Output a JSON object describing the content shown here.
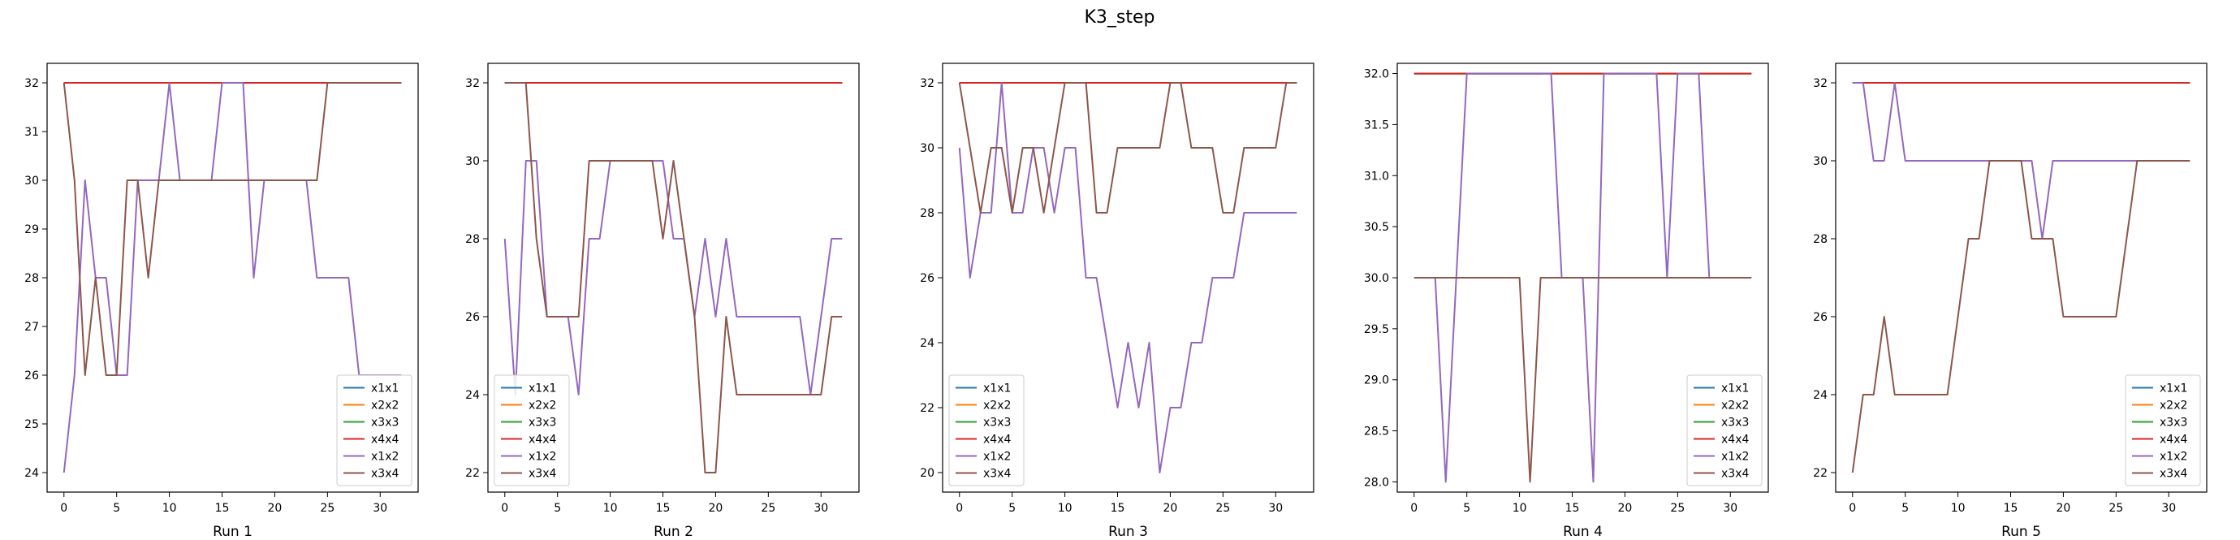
{
  "figure": {
    "title": "K3_step"
  },
  "series_colors": {
    "x1x1": "#1f77b4",
    "x2x2": "#ff7f0e",
    "x3x3": "#2ca02c",
    "x4x4": "#d62728",
    "x1x2": "#9467bd",
    "x3x4": "#8c564b"
  },
  "chart_data": [
    {
      "type": "line",
      "xlabel": "Run 1",
      "ylabel": "",
      "xlim": [
        -1.6,
        33.6
      ],
      "ylim": [
        23.6,
        32.4
      ],
      "xticks": [
        0,
        5,
        10,
        15,
        20,
        25,
        30
      ],
      "yticks": [
        24,
        25,
        26,
        27,
        28,
        29,
        30,
        31,
        32
      ],
      "legend": "lower-right",
      "series": [
        {
          "name": "x1x1",
          "x": [
            0,
            32
          ],
          "y": [
            32,
            32
          ]
        },
        {
          "name": "x2x2",
          "x": [
            0,
            32
          ],
          "y": [
            32,
            32
          ]
        },
        {
          "name": "x3x3",
          "x": [
            0,
            32
          ],
          "y": [
            32,
            32
          ]
        },
        {
          "name": "x4x4",
          "x": [
            0,
            32
          ],
          "y": [
            32,
            32
          ]
        },
        {
          "name": "x1x2",
          "x": [
            0,
            1,
            2,
            3,
            4,
            5,
            6,
            7,
            8,
            9,
            10,
            11,
            12,
            13,
            14,
            15,
            16,
            17,
            18,
            19,
            20,
            21,
            22,
            23,
            24,
            25,
            26,
            27,
            28,
            29,
            30,
            31,
            32
          ],
          "y": [
            24,
            26,
            30,
            28,
            28,
            26,
            26,
            30,
            30,
            30,
            32,
            30,
            30,
            30,
            30,
            32,
            32,
            32,
            28,
            30,
            30,
            30,
            30,
            30,
            28,
            28,
            28,
            28,
            26,
            26,
            26,
            26,
            26
          ]
        },
        {
          "name": "x3x4",
          "x": [
            0,
            1,
            2,
            3,
            4,
            5,
            6,
            7,
            8,
            9,
            10,
            11,
            12,
            13,
            14,
            15,
            16,
            17,
            18,
            19,
            20,
            21,
            22,
            23,
            24,
            25,
            26,
            27,
            28,
            29,
            30,
            31,
            32
          ],
          "y": [
            32,
            30,
            26,
            28,
            26,
            26,
            30,
            30,
            28,
            30,
            30,
            30,
            30,
            30,
            30,
            30,
            30,
            30,
            30,
            30,
            30,
            30,
            30,
            30,
            30,
            32,
            32,
            32,
            32,
            32,
            32,
            32,
            32
          ]
        }
      ]
    },
    {
      "type": "line",
      "xlabel": "Run 2",
      "ylabel": "",
      "xlim": [
        -1.6,
        33.6
      ],
      "ylim": [
        21.5,
        32.5
      ],
      "xticks": [
        0,
        5,
        10,
        15,
        20,
        25,
        30
      ],
      "yticks": [
        22,
        24,
        26,
        28,
        30,
        32
      ],
      "legend": "lower-left",
      "series": [
        {
          "name": "x1x1",
          "x": [
            0,
            32
          ],
          "y": [
            32,
            32
          ]
        },
        {
          "name": "x2x2",
          "x": [
            0,
            32
          ],
          "y": [
            32,
            32
          ]
        },
        {
          "name": "x3x3",
          "x": [
            0,
            32
          ],
          "y": [
            32,
            32
          ]
        },
        {
          "name": "x4x4",
          "x": [
            0,
            32
          ],
          "y": [
            32,
            32
          ]
        },
        {
          "name": "x1x2",
          "x": [
            0,
            1,
            2,
            3,
            4,
            5,
            6,
            7,
            8,
            9,
            10,
            11,
            12,
            13,
            14,
            15,
            16,
            17,
            18,
            19,
            20,
            21,
            22,
            23,
            24,
            25,
            26,
            27,
            28,
            29,
            30,
            31,
            32
          ],
          "y": [
            28,
            24,
            30,
            30,
            26,
            26,
            26,
            24,
            28,
            28,
            30,
            30,
            30,
            30,
            30,
            30,
            28,
            28,
            26,
            28,
            26,
            28,
            26,
            26,
            26,
            26,
            26,
            26,
            26,
            24,
            26,
            28,
            28
          ]
        },
        {
          "name": "x3x4",
          "x": [
            0,
            1,
            2,
            3,
            4,
            5,
            6,
            7,
            8,
            9,
            10,
            11,
            12,
            13,
            14,
            15,
            16,
            17,
            18,
            19,
            20,
            21,
            22,
            23,
            24,
            25,
            26,
            27,
            28,
            29,
            30,
            31,
            32
          ],
          "y": [
            32,
            32,
            32,
            28,
            26,
            26,
            26,
            26,
            30,
            30,
            30,
            30,
            30,
            30,
            30,
            28,
            30,
            28,
            26,
            22,
            22,
            26,
            24,
            24,
            24,
            24,
            24,
            24,
            24,
            24,
            24,
            26,
            26
          ]
        }
      ]
    },
    {
      "type": "line",
      "xlabel": "Run 3",
      "ylabel": "",
      "xlim": [
        -1.6,
        33.6
      ],
      "ylim": [
        19.4,
        32.6
      ],
      "xticks": [
        0,
        5,
        10,
        15,
        20,
        25,
        30
      ],
      "yticks": [
        20,
        22,
        24,
        26,
        28,
        30,
        32
      ],
      "legend": "lower-left",
      "series": [
        {
          "name": "x1x1",
          "x": [
            0,
            32
          ],
          "y": [
            32,
            32
          ]
        },
        {
          "name": "x2x2",
          "x": [
            0,
            32
          ],
          "y": [
            32,
            32
          ]
        },
        {
          "name": "x3x3",
          "x": [
            0,
            32
          ],
          "y": [
            32,
            32
          ]
        },
        {
          "name": "x4x4",
          "x": [
            0,
            32
          ],
          "y": [
            32,
            32
          ]
        },
        {
          "name": "x1x2",
          "x": [
            0,
            1,
            2,
            3,
            4,
            5,
            6,
            7,
            8,
            9,
            10,
            11,
            12,
            13,
            14,
            15,
            16,
            17,
            18,
            19,
            20,
            21,
            22,
            23,
            24,
            25,
            26,
            27,
            28,
            29,
            30,
            31,
            32
          ],
          "y": [
            30,
            26,
            28,
            28,
            32,
            28,
            28,
            30,
            30,
            28,
            30,
            30,
            26,
            26,
            24,
            22,
            24,
            22,
            24,
            20,
            22,
            22,
            24,
            24,
            26,
            26,
            26,
            28,
            28,
            28,
            28,
            28,
            28
          ]
        },
        {
          "name": "x3x4",
          "x": [
            0,
            1,
            2,
            3,
            4,
            5,
            6,
            7,
            8,
            9,
            10,
            11,
            12,
            13,
            14,
            15,
            16,
            17,
            18,
            19,
            20,
            21,
            22,
            23,
            24,
            25,
            26,
            27,
            28,
            29,
            30,
            31,
            32
          ],
          "y": [
            32,
            30,
            28,
            30,
            30,
            28,
            30,
            30,
            28,
            30,
            32,
            32,
            32,
            28,
            28,
            30,
            30,
            30,
            30,
            30,
            32,
            32,
            30,
            30,
            30,
            28,
            28,
            30,
            30,
            30,
            30,
            32,
            32
          ]
        }
      ]
    },
    {
      "type": "line",
      "xlabel": "Run 4",
      "ylabel": "",
      "xlim": [
        -1.6,
        33.6
      ],
      "ylim": [
        27.9,
        32.1
      ],
      "xticks": [
        0,
        5,
        10,
        15,
        20,
        25,
        30
      ],
      "yticks": [
        28.0,
        28.5,
        29.0,
        29.5,
        30.0,
        30.5,
        31.0,
        31.5,
        32.0
      ],
      "legend": "lower-right",
      "series": [
        {
          "name": "x1x1",
          "x": [
            0,
            32
          ],
          "y": [
            32,
            32
          ]
        },
        {
          "name": "x2x2",
          "x": [
            0,
            32
          ],
          "y": [
            32,
            32
          ]
        },
        {
          "name": "x3x3",
          "x": [
            0,
            32
          ],
          "y": [
            32,
            32
          ]
        },
        {
          "name": "x4x4",
          "x": [
            0,
            32
          ],
          "y": [
            32,
            32
          ]
        },
        {
          "name": "x1x2",
          "x": [
            0,
            1,
            2,
            3,
            4,
            5,
            6,
            7,
            8,
            9,
            10,
            11,
            12,
            13,
            14,
            15,
            16,
            17,
            18,
            19,
            20,
            21,
            22,
            23,
            24,
            25,
            26,
            27,
            28,
            29,
            30,
            31,
            32
          ],
          "y": [
            30,
            30,
            30,
            28,
            30,
            32,
            32,
            32,
            32,
            32,
            32,
            32,
            32,
            32,
            30,
            30,
            30,
            28,
            32,
            32,
            32,
            32,
            32,
            32,
            30,
            32,
            32,
            32,
            30,
            30,
            30,
            30,
            30
          ]
        },
        {
          "name": "x3x4",
          "x": [
            0,
            1,
            2,
            3,
            4,
            5,
            6,
            7,
            8,
            9,
            10,
            11,
            12,
            13,
            14,
            15,
            16,
            17,
            18,
            19,
            20,
            21,
            22,
            23,
            24,
            25,
            26,
            27,
            28,
            29,
            30,
            31,
            32
          ],
          "y": [
            30,
            30,
            30,
            30,
            30,
            30,
            30,
            30,
            30,
            30,
            30,
            28,
            30,
            30,
            30,
            30,
            30,
            30,
            30,
            30,
            30,
            30,
            30,
            30,
            30,
            30,
            30,
            30,
            30,
            30,
            30,
            30,
            30
          ]
        }
      ]
    },
    {
      "type": "line",
      "xlabel": "Run 5",
      "ylabel": "",
      "xlim": [
        -1.6,
        33.6
      ],
      "ylim": [
        21.5,
        32.5
      ],
      "xticks": [
        0,
        5,
        10,
        15,
        20,
        25,
        30
      ],
      "yticks": [
        22,
        24,
        26,
        28,
        30,
        32
      ],
      "legend": "lower-right",
      "series": [
        {
          "name": "x1x1",
          "x": [
            0,
            32
          ],
          "y": [
            32,
            32
          ]
        },
        {
          "name": "x2x2",
          "x": [
            0,
            32
          ],
          "y": [
            32,
            32
          ]
        },
        {
          "name": "x3x3",
          "x": [
            0,
            32
          ],
          "y": [
            32,
            32
          ]
        },
        {
          "name": "x4x4",
          "x": [
            0,
            32
          ],
          "y": [
            32,
            32
          ]
        },
        {
          "name": "x1x2",
          "x": [
            0,
            1,
            2,
            3,
            4,
            5,
            6,
            7,
            8,
            9,
            10,
            11,
            12,
            13,
            14,
            15,
            16,
            17,
            18,
            19,
            20,
            21,
            22,
            23,
            24,
            25,
            26,
            27,
            28,
            29,
            30,
            31,
            32
          ],
          "y": [
            32,
            32,
            30,
            30,
            32,
            30,
            30,
            30,
            30,
            30,
            30,
            30,
            30,
            30,
            30,
            30,
            30,
            30,
            28,
            30,
            30,
            30,
            30,
            30,
            30,
            30,
            30,
            30,
            30,
            30,
            30,
            30,
            30
          ]
        },
        {
          "name": "x3x4",
          "x": [
            0,
            1,
            2,
            3,
            4,
            5,
            6,
            7,
            8,
            9,
            10,
            11,
            12,
            13,
            14,
            15,
            16,
            17,
            18,
            19,
            20,
            21,
            22,
            23,
            24,
            25,
            26,
            27,
            28,
            29,
            30,
            31,
            32
          ],
          "y": [
            22,
            24,
            24,
            26,
            24,
            24,
            24,
            24,
            24,
            24,
            26,
            28,
            28,
            30,
            30,
            30,
            30,
            28,
            28,
            28,
            26,
            26,
            26,
            26,
            26,
            26,
            28,
            30,
            30,
            30,
            30,
            30,
            30
          ]
        }
      ]
    }
  ]
}
